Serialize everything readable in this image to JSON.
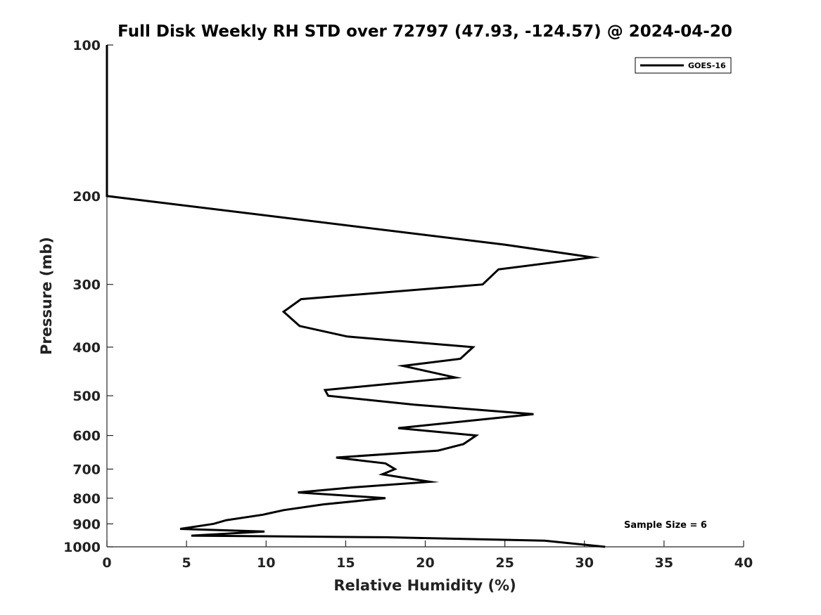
{
  "chart_data": {
    "type": "line",
    "title": "Full Disk Weekly RH STD over 72797 (47.93, -124.57) @ 2024-04-20",
    "xlabel": "Relative Humidity (%)",
    "ylabel": "Pressure (mb)",
    "xlim": [
      0,
      40
    ],
    "ylim": [
      100,
      1000
    ],
    "yscale": "log",
    "y_reversed": true,
    "xticks": [
      0,
      5,
      10,
      15,
      20,
      25,
      30,
      35,
      40
    ],
    "xtick_labels": [
      "0",
      "5",
      "10",
      "15",
      "20",
      "25",
      "30",
      "35",
      "40"
    ],
    "yticks": [
      100,
      200,
      300,
      400,
      500,
      600,
      700,
      800,
      900,
      1000
    ],
    "ytick_labels": [
      "100",
      "200",
      "300",
      "400",
      "500",
      "600",
      "700",
      "800",
      "900",
      "1000"
    ],
    "grid": false,
    "legend_position": "top-right",
    "annotation": "Sample Size = 6",
    "series": [
      {
        "name": "GOES-16",
        "color": "#000000",
        "points": [
          [
            0,
            100
          ],
          [
            0,
            125
          ],
          [
            0,
            150
          ],
          [
            0,
            175
          ],
          [
            0,
            200
          ],
          [
            25.0,
            250
          ],
          [
            30.5,
            265
          ],
          [
            24.6,
            280
          ],
          [
            23.6,
            300
          ],
          [
            12.2,
            321
          ],
          [
            11.1,
            340
          ],
          [
            12.1,
            363
          ],
          [
            15.1,
            381
          ],
          [
            23.0,
            400
          ],
          [
            22.2,
            422
          ],
          [
            18.6,
            436
          ],
          [
            21.9,
            460
          ],
          [
            13.7,
            487
          ],
          [
            13.9,
            500
          ],
          [
            19.3,
            521
          ],
          [
            26.8,
            544
          ],
          [
            18.3,
            580
          ],
          [
            23.2,
            600
          ],
          [
            22.4,
            624
          ],
          [
            20.8,
            643
          ],
          [
            14.4,
            664
          ],
          [
            17.5,
            682
          ],
          [
            18.1,
            700
          ],
          [
            17.3,
            717
          ],
          [
            20.3,
            742
          ],
          [
            15.3,
            762
          ],
          [
            12.0,
            779
          ],
          [
            17.5,
            800
          ],
          [
            13.6,
            823
          ],
          [
            11.1,
            845
          ],
          [
            9.8,
            863
          ],
          [
            7.5,
            885
          ],
          [
            6.7,
            900
          ],
          [
            4.6,
            921
          ],
          [
            9.9,
            932
          ],
          [
            5.3,
            950
          ],
          [
            17.5,
            957
          ],
          [
            27.5,
            972
          ],
          [
            31.3,
            1000
          ]
        ]
      }
    ]
  }
}
